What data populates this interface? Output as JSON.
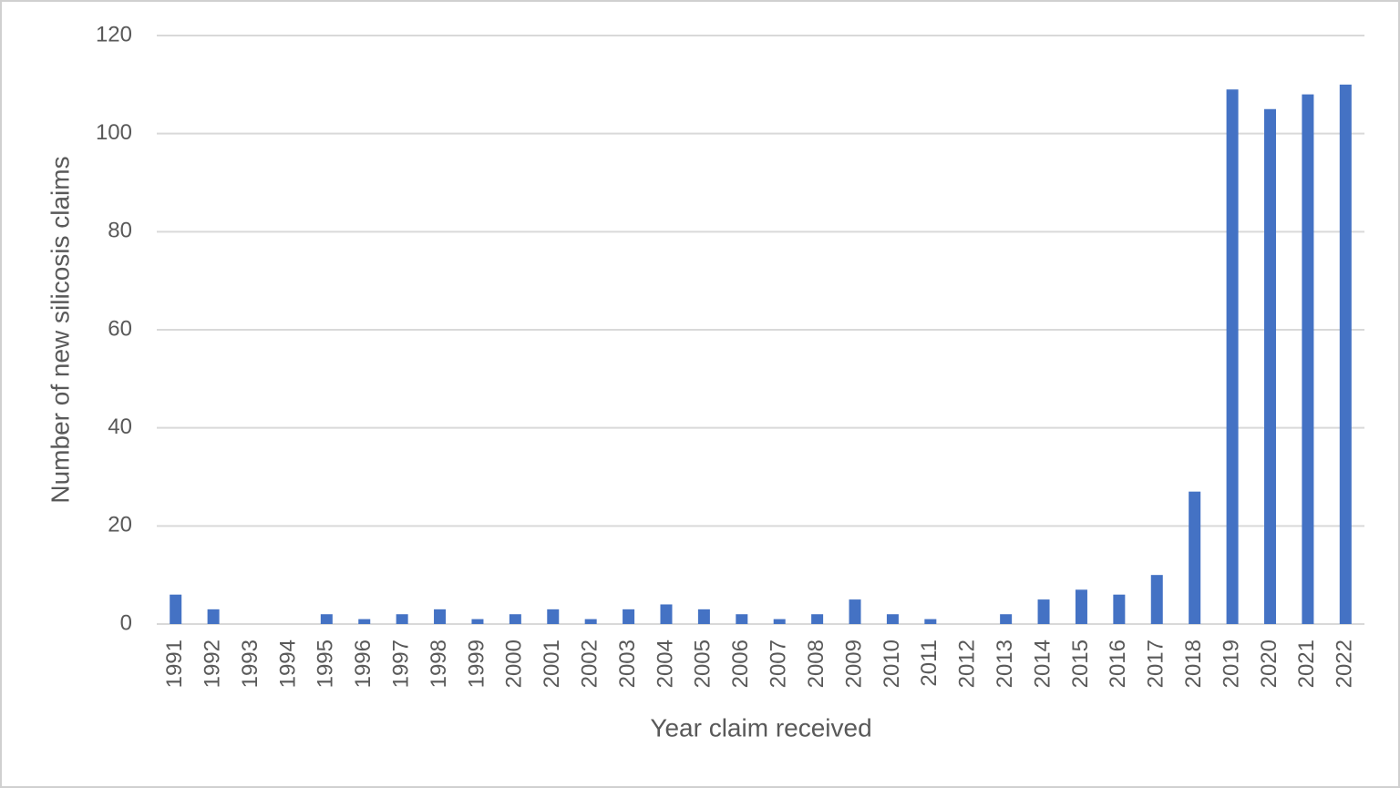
{
  "chart_data": {
    "type": "bar",
    "x_label": "Year claim received",
    "y_label": "Number of new silicosis claims",
    "categories": [
      "1991",
      "1992",
      "1993",
      "1994",
      "1995",
      "1996",
      "1997",
      "1998",
      "1999",
      "2000",
      "2001",
      "2002",
      "2003",
      "2004",
      "2005",
      "2006",
      "2007",
      "2008",
      "2009",
      "2010",
      "2011",
      "2012",
      "2013",
      "2014",
      "2015",
      "2016",
      "2017",
      "2018",
      "2019",
      "2020",
      "2021",
      "2022"
    ],
    "values": [
      6,
      3,
      0,
      0,
      2,
      1,
      2,
      3,
      1,
      2,
      3,
      1,
      3,
      4,
      3,
      2,
      1,
      2,
      5,
      2,
      1,
      0,
      2,
      5,
      7,
      6,
      10,
      27,
      109,
      105,
      108,
      110
    ],
    "color": "#4472c4",
    "ylim": [
      0,
      120
    ],
    "yticks": [
      0,
      20,
      40,
      60,
      80,
      100,
      120
    ],
    "grid": true
  }
}
